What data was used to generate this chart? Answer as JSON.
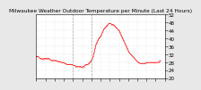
{
  "title": "Milwaukee Weather Outdoor Temperature per Minute (Last 24 Hours)",
  "background_color": "#e8e8e8",
  "plot_bg_color": "#ffffff",
  "line_color": "#ff0000",
  "vline_color": "#aaaaaa",
  "vline_style": "--",
  "ylim": [
    20,
    52
  ],
  "yticks": [
    20,
    24,
    28,
    32,
    36,
    40,
    44,
    48,
    52
  ],
  "ylabel_fontsize": 4,
  "title_fontsize": 4.2,
  "y_data": [
    31,
    31,
    31,
    30.5,
    30,
    30,
    30,
    29.5,
    30,
    30,
    30,
    30,
    30,
    30,
    30,
    29.5,
    29,
    29,
    29,
    29,
    29,
    29,
    29,
    28.5,
    28.5,
    28.5,
    28.5,
    28,
    28,
    28,
    28,
    27.5,
    27.5,
    27,
    27,
    27,
    27,
    27,
    27,
    27,
    26.5,
    26.5,
    26.5,
    26,
    26,
    26,
    26,
    26,
    26,
    25.8,
    25.5,
    26,
    26,
    26.5,
    27,
    27,
    27,
    27.5,
    28,
    28.5,
    29,
    30,
    31,
    33,
    35,
    37,
    38,
    39,
    40,
    40.5,
    41,
    42,
    43,
    44,
    45,
    45.5,
    46,
    46.5,
    47,
    47.5,
    47.5,
    47.5,
    47,
    47,
    47,
    46.5,
    46,
    45.5,
    45,
    44.5,
    44,
    43,
    42,
    41,
    40,
    39,
    38,
    37,
    36,
    35,
    34,
    33,
    32.5,
    32,
    31.5,
    31,
    30.5,
    30,
    29.5,
    29,
    28.5,
    28,
    28,
    27.5,
    27.5,
    27.5,
    27.5,
    27.5,
    27.5,
    27.5,
    28,
    28,
    28,
    28,
    28,
    28,
    28,
    28,
    28,
    28,
    28,
    28,
    28,
    28,
    28.5,
    29
  ],
  "vline_x": [
    40,
    60
  ],
  "xtick_positions": [
    0,
    10,
    20,
    30,
    40,
    50,
    60,
    70,
    80,
    90,
    100,
    110,
    120,
    130,
    140
  ],
  "marker_size": 0.8,
  "linewidth": 0.5
}
